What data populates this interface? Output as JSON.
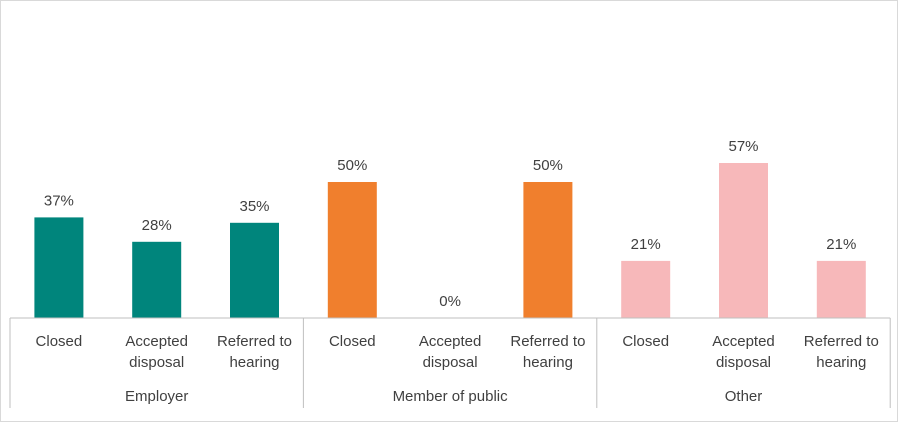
{
  "chart_data": {
    "type": "bar",
    "title": "",
    "xlabel": "",
    "ylabel": "",
    "ylim": [
      0,
      100
    ],
    "grid": false,
    "legend": "none",
    "value_suffix": "%",
    "groups": [
      {
        "name": "Employer",
        "color": "#00857C",
        "categories": [
          "Closed",
          "Accepted disposal",
          "Referred to hearing"
        ],
        "category_lines": [
          [
            "Closed"
          ],
          [
            "Accepted",
            "disposal"
          ],
          [
            "Referred to",
            "hearing"
          ]
        ],
        "values": [
          37,
          28,
          35
        ],
        "data_labels": [
          "37%",
          "28%",
          "35%"
        ]
      },
      {
        "name": "Member of public",
        "color": "#F07F2D",
        "categories": [
          "Closed",
          "Accepted disposal",
          "Referred to hearing"
        ],
        "category_lines": [
          [
            "Closed"
          ],
          [
            "Accepted",
            "disposal"
          ],
          [
            "Referred to",
            "hearing"
          ]
        ],
        "values": [
          50,
          0,
          50
        ],
        "data_labels": [
          "50%",
          "0%",
          "50%"
        ]
      },
      {
        "name": "Other",
        "color": "#F7B8BA",
        "categories": [
          "Closed",
          "Accepted disposal",
          "Referred to hearing"
        ],
        "category_lines": [
          [
            "Closed"
          ],
          [
            "Accepted",
            "disposal"
          ],
          [
            "Referred to",
            "hearing"
          ]
        ],
        "values": [
          21,
          57,
          21
        ],
        "data_labels": [
          "21%",
          "57%",
          "21%"
        ]
      }
    ]
  }
}
